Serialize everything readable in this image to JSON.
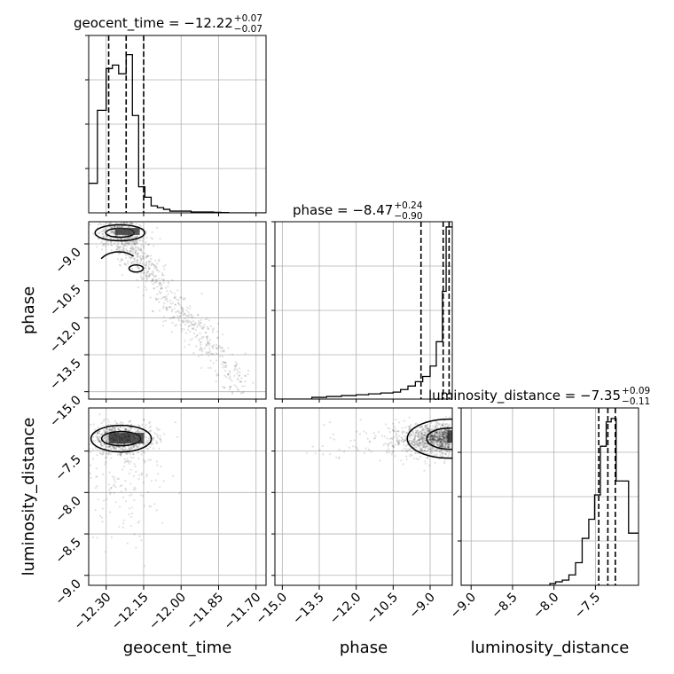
{
  "chart_data": {
    "type": "corner",
    "parameters": [
      "geocent_time",
      "phase",
      "luminosity_distance"
    ],
    "axis_labels": [
      "geocent_time",
      "phase",
      "luminosity_distance"
    ],
    "ranges": {
      "geocent_time": [
        -12.37,
        -11.66
      ],
      "phase": [
        -15.3,
        -8.1
      ],
      "luminosity_distance": [
        -9.12,
        -6.98
      ]
    },
    "ticks": {
      "geocent_time": [
        -12.3,
        -12.15,
        -12.0,
        -11.85,
        -11.7
      ],
      "phase_x": [
        -15.0,
        -13.5,
        -12.0,
        -10.5,
        -9.0
      ],
      "phase_y": [
        -9.0,
        -10.5,
        -12.0,
        -13.5,
        -15.0
      ],
      "luminosity_distance_x": [
        -9.0,
        -8.5,
        -8.0,
        -7.5
      ],
      "luminosity_distance_y": [
        -7.5,
        -8.0,
        -8.5,
        -9.0
      ]
    },
    "tick_labels": {
      "geocent_time": [
        "−12.30",
        "−12.15",
        "−12.00",
        "−11.85",
        "−11.70"
      ],
      "phase_x": [
        "−15.0",
        "−13.5",
        "−12.0",
        "−10.5",
        "−9.0"
      ],
      "phase_y": [
        "−9.0",
        "−10.5",
        "−12.0",
        "−13.5",
        "−15.0"
      ],
      "luminosity_distance_x": [
        "−9.0",
        "−8.5",
        "−8.0",
        "−7.5"
      ],
      "luminosity_distance_y": [
        "−7.5",
        "−8.0",
        "−8.5",
        "−9.0"
      ]
    },
    "titles": [
      {
        "param": "geocent_time",
        "text": "geocent_time = −12.22",
        "plus": "+0.07",
        "minus": "−0.07"
      },
      {
        "param": "phase",
        "text": "phase = −8.47",
        "plus": "+0.24",
        "minus": "−0.90"
      },
      {
        "param": "luminosity_distance",
        "text": "luminosity_distance = −7.35",
        "plus": "+0.09",
        "minus": "−0.11"
      }
    ],
    "quantiles": {
      "geocent_time": [
        -12.29,
        -12.22,
        -12.15
      ],
      "phase": [
        -9.37,
        -8.47,
        -8.23
      ],
      "luminosity_distance": [
        -7.46,
        -7.35,
        -7.26
      ]
    },
    "histograms": {
      "geocent_time": {
        "edges": [
          -12.37,
          -12.335,
          -12.3,
          -12.275,
          -12.25,
          -12.22,
          -12.195,
          -12.17,
          -12.145,
          -12.12,
          -12.095,
          -12.07,
          -12.045,
          -12.015,
          -11.99,
          -11.96,
          -11.93,
          -11.9,
          -11.87,
          -11.84,
          -11.81,
          -11.66
        ],
        "counts": [
          0.17,
          0.59,
          0.83,
          0.85,
          0.8,
          0.91,
          0.56,
          0.15,
          0.09,
          0.04,
          0.03,
          0.02,
          0.01,
          0.01,
          0.01,
          0.005,
          0.005,
          0.005,
          0.003,
          0.002,
          0.0
        ]
      },
      "phase": {
        "edges": [
          -15.3,
          -13.8,
          -13.2,
          -12.6,
          -12.0,
          -11.5,
          -11.0,
          -10.5,
          -10.2,
          -9.9,
          -9.6,
          -9.3,
          -9.0,
          -8.75,
          -8.5,
          -8.35,
          -8.1
        ],
        "counts": [
          0.0,
          0.01,
          0.015,
          0.02,
          0.025,
          0.03,
          0.035,
          0.04,
          0.055,
          0.075,
          0.1,
          0.13,
          0.19,
          0.33,
          0.62,
          0.99
        ]
      },
      "luminosity_distance": {
        "edges": [
          -9.12,
          -8.05,
          -7.98,
          -7.9,
          -7.82,
          -7.74,
          -7.66,
          -7.58,
          -7.51,
          -7.44,
          -7.37,
          -7.31,
          -7.25,
          -7.18,
          -7.1,
          -6.98
        ],
        "counts": [
          0.0,
          0.01,
          0.02,
          0.03,
          0.06,
          0.13,
          0.27,
          0.38,
          0.52,
          0.8,
          0.94,
          0.96,
          0.6,
          0.6,
          0.3
        ]
      }
    },
    "scatter_density": {
      "phase_vs_geocent_time": "dense cluster near geocent_time -12.25 / phase -8.6, with a tail extending to geocent_time -11.7 / phase -15",
      "luminosity_distance_vs_geocent_time": "dense cluster near geocent_time -12.25 / luminosity_distance -7.3",
      "luminosity_distance_vs_phase": "dense cluster near phase -8.3 / luminosity_distance -7.35"
    },
    "grid": true
  }
}
